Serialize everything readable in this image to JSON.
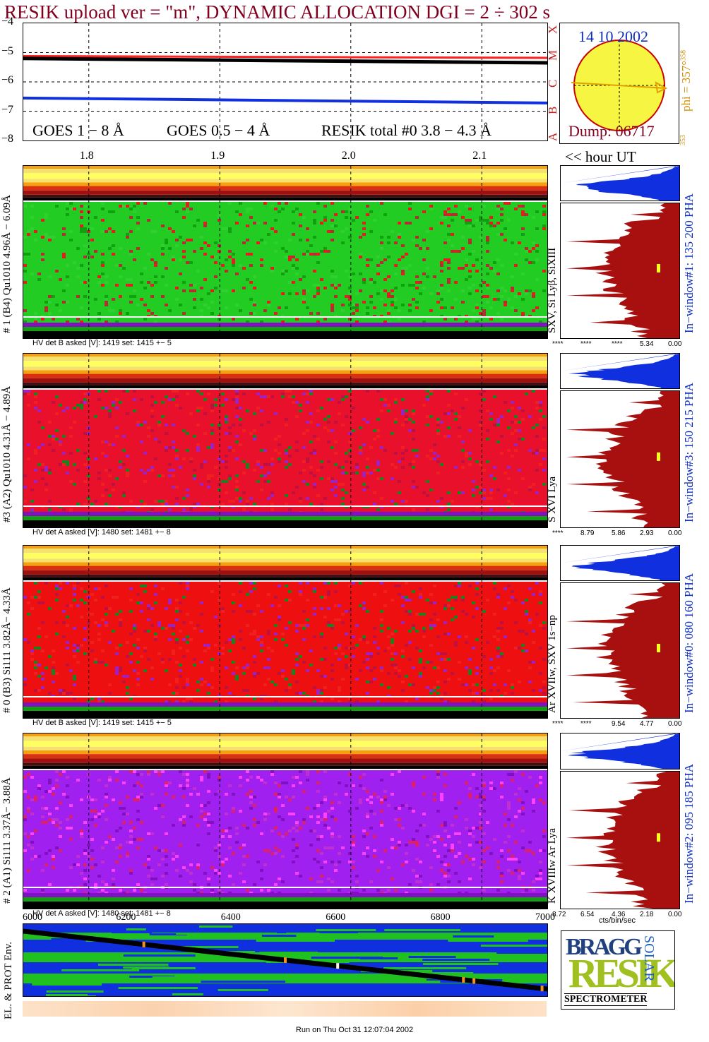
{
  "title": "RESIK upload ver = \"m\", DYNAMIC ALLOCATION  DGI =   2 ÷ 302 s",
  "goes": {
    "yticks": [
      "−4",
      "−5",
      "−6",
      "−7",
      "−8"
    ],
    "legend_goes18": "GOES 1 − 8 Å",
    "legend_goes054": "GOES 0.5 − 4 Å",
    "legend_resik": "RESIK total #0  3.8 − 4.3 Å",
    "color_goes18": "#ff0000",
    "color_goes054": "#0000ff"
  },
  "hour_axis": {
    "labels": [
      "1.8",
      "1.9",
      "2.0",
      "2.1"
    ],
    "unit_label": "<< hour UT"
  },
  "sun_panel": {
    "date": "14 10 2002",
    "dump": "Dump: 06717",
    "left_letters": [
      "A",
      "B",
      "C",
      "M",
      "X"
    ],
    "phi": "phi = 357°",
    "phi_sup": "358",
    "phi_sub": "353"
  },
  "channels": [
    {
      "id": "ch1",
      "left_label": "# 1 (B4) Qu1010 4.96Å − 6.09Å",
      "line_label": "SXV, Si Lyβ, SiXIII",
      "window_label": "In−window#1:  135 200 PHA",
      "hv": "HV det B asked [V]:  1419 set:  1415 +−    5",
      "scale": [
        "****",
        "****",
        "****",
        "5.34",
        "0.00"
      ],
      "base_color": "#22cc22"
    },
    {
      "id": "ch3",
      "left_label": "#3 (A2) Qu1010  4.31Å − 4.89Å",
      "line_label": "S XVI Lya",
      "window_label": "In−window#3:  150 215 PHA",
      "hv": "HV det A asked [V]:  1480 set:  1481 +−    8",
      "scale": [
        "****",
        "8.79",
        "5.86",
        "2.93",
        "0.00"
      ],
      "base_color": "#e8102a"
    },
    {
      "id": "ch0",
      "left_label": "# 0 (B3) Si111  3.82Å− 4.33Å",
      "line_label": "Ar XVIIw,  SXV 1s−np",
      "window_label": "In−window#0:  080 160 PHA",
      "hv": "HV det B asked [V]:  1419 set:  1415 +−    5",
      "scale": [
        "****",
        "****",
        "9.54",
        "4.77",
        "0.00"
      ],
      "base_color": "#ee1010"
    },
    {
      "id": "ch2",
      "left_label": "# 2 (A1) Si111  3.37Å−  3.88Å",
      "line_label": "K XVIIIw   Ar Lya",
      "window_label": "In−window#2:  095 185 PHA",
      "hv": "HV det A asked [V]:  1480 set:  1481 +−    8",
      "scale": [
        "8.72",
        "6.54",
        "4.36",
        "2.18",
        "0.00"
      ],
      "base_color": "#a020f0"
    }
  ],
  "units_label": "cts/bin/sec",
  "orbit": {
    "x_ticks": [
      "6000",
      "6200",
      "6400",
      "6600",
      "6800",
      "7000"
    ],
    "ylabel": "EL. & PROT Env."
  },
  "logo": {
    "letters_a": "BRAGG",
    "letters_b": "RESIK",
    "letters_c": "SOLAR",
    "caption": "SPECTROMETER"
  },
  "footer": "Run on Thu Oct 31 12:07:04 2002",
  "chart_data": [
    {
      "type": "line",
      "name": "goes-lightcurves",
      "ylim": [
        -8,
        -4
      ],
      "xlim": [
        1.75,
        2.15
      ],
      "x": [
        1.75,
        2.15
      ],
      "series": [
        {
          "name": "GOES 1 − 8 Å",
          "values": [
            -5.12,
            -5.18
          ]
        },
        {
          "name": "GOES 0.5 − 4 Å",
          "values": [
            -6.55,
            -6.72
          ]
        },
        {
          "name": "RESIK total #0  3.8 − 4.3 Å",
          "values": [
            -5.2,
            -5.35
          ]
        }
      ]
    },
    {
      "type": "line",
      "name": "orbit-track",
      "xlim": [
        6000,
        7000
      ],
      "x": [
        6000,
        7000
      ],
      "series": [
        {
          "values": [
            1,
            0
          ]
        }
      ]
    }
  ]
}
